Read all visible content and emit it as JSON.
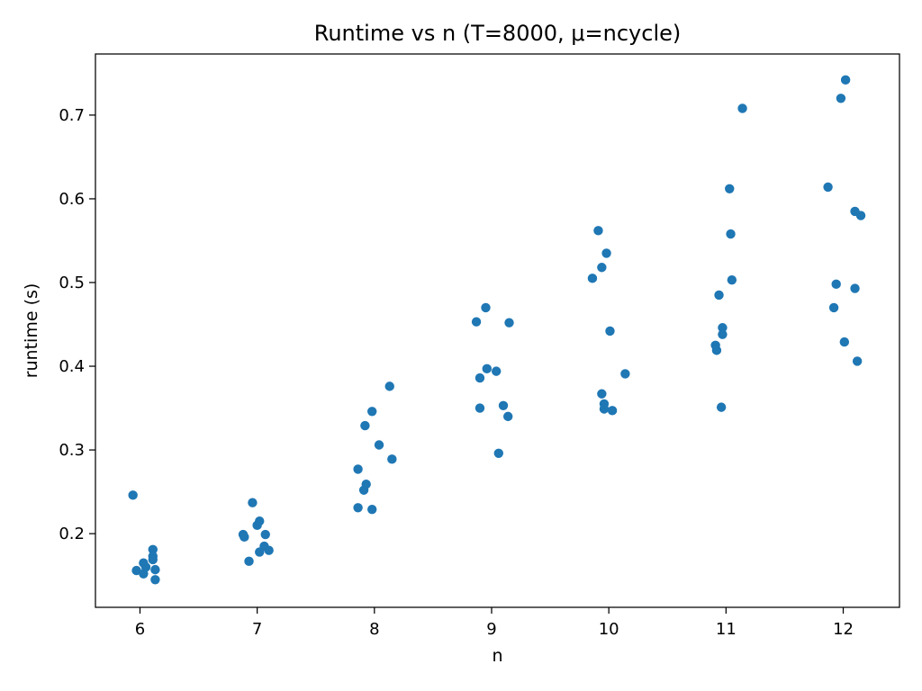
{
  "chart_data": {
    "type": "scatter",
    "title": "Runtime vs n (T=8000, μ=ncycle)",
    "xlabel": "n",
    "ylabel": "runtime (s)",
    "xlim": [
      5.62,
      12.48
    ],
    "ylim": [
      0.112,
      0.773
    ],
    "xticks": [
      6,
      7,
      8,
      9,
      10,
      11,
      12
    ],
    "xtick_labels": [
      "6",
      "7",
      "8",
      "9",
      "10",
      "11",
      "12"
    ],
    "yticks": [
      0.2,
      0.3,
      0.4,
      0.5,
      0.6,
      0.7
    ],
    "ytick_labels": [
      "0.2",
      "0.3",
      "0.4",
      "0.5",
      "0.6",
      "0.7"
    ],
    "grid": false,
    "color": "#1f77b4",
    "points": [
      {
        "x": 5.94,
        "y": 0.246
      },
      {
        "x": 5.97,
        "y": 0.156
      },
      {
        "x": 6.03,
        "y": 0.165
      },
      {
        "x": 6.03,
        "y": 0.152
      },
      {
        "x": 6.05,
        "y": 0.16
      },
      {
        "x": 6.11,
        "y": 0.181
      },
      {
        "x": 6.11,
        "y": 0.173
      },
      {
        "x": 6.11,
        "y": 0.169
      },
      {
        "x": 6.13,
        "y": 0.157
      },
      {
        "x": 6.13,
        "y": 0.145
      },
      {
        "x": 6.88,
        "y": 0.199
      },
      {
        "x": 6.89,
        "y": 0.196
      },
      {
        "x": 6.93,
        "y": 0.167
      },
      {
        "x": 6.96,
        "y": 0.237
      },
      {
        "x": 7.0,
        "y": 0.21
      },
      {
        "x": 7.02,
        "y": 0.215
      },
      {
        "x": 7.02,
        "y": 0.178
      },
      {
        "x": 7.06,
        "y": 0.185
      },
      {
        "x": 7.07,
        "y": 0.199
      },
      {
        "x": 7.1,
        "y": 0.18
      },
      {
        "x": 7.86,
        "y": 0.277
      },
      {
        "x": 7.86,
        "y": 0.231
      },
      {
        "x": 7.91,
        "y": 0.252
      },
      {
        "x": 7.92,
        "y": 0.329
      },
      {
        "x": 7.93,
        "y": 0.259
      },
      {
        "x": 7.98,
        "y": 0.346
      },
      {
        "x": 7.98,
        "y": 0.229
      },
      {
        "x": 8.04,
        "y": 0.306
      },
      {
        "x": 8.13,
        "y": 0.376
      },
      {
        "x": 8.15,
        "y": 0.289
      },
      {
        "x": 8.87,
        "y": 0.453
      },
      {
        "x": 8.9,
        "y": 0.386
      },
      {
        "x": 8.9,
        "y": 0.35
      },
      {
        "x": 8.95,
        "y": 0.47
      },
      {
        "x": 8.96,
        "y": 0.397
      },
      {
        "x": 9.04,
        "y": 0.394
      },
      {
        "x": 9.06,
        "y": 0.296
      },
      {
        "x": 9.1,
        "y": 0.353
      },
      {
        "x": 9.14,
        "y": 0.34
      },
      {
        "x": 9.15,
        "y": 0.452
      },
      {
        "x": 9.86,
        "y": 0.505
      },
      {
        "x": 9.91,
        "y": 0.562
      },
      {
        "x": 9.94,
        "y": 0.518
      },
      {
        "x": 9.94,
        "y": 0.367
      },
      {
        "x": 9.96,
        "y": 0.355
      },
      {
        "x": 9.96,
        "y": 0.349
      },
      {
        "x": 9.98,
        "y": 0.535
      },
      {
        "x": 10.01,
        "y": 0.442
      },
      {
        "x": 10.03,
        "y": 0.347
      },
      {
        "x": 10.14,
        "y": 0.391
      },
      {
        "x": 10.91,
        "y": 0.425
      },
      {
        "x": 10.92,
        "y": 0.419
      },
      {
        "x": 10.94,
        "y": 0.485
      },
      {
        "x": 10.96,
        "y": 0.351
      },
      {
        "x": 10.97,
        "y": 0.446
      },
      {
        "x": 10.97,
        "y": 0.438
      },
      {
        "x": 11.03,
        "y": 0.612
      },
      {
        "x": 11.04,
        "y": 0.558
      },
      {
        "x": 11.05,
        "y": 0.503
      },
      {
        "x": 11.14,
        "y": 0.708
      },
      {
        "x": 11.87,
        "y": 0.614
      },
      {
        "x": 11.92,
        "y": 0.47
      },
      {
        "x": 11.94,
        "y": 0.498
      },
      {
        "x": 11.98,
        "y": 0.72
      },
      {
        "x": 12.01,
        "y": 0.429
      },
      {
        "x": 12.02,
        "y": 0.742
      },
      {
        "x": 12.1,
        "y": 0.585
      },
      {
        "x": 12.1,
        "y": 0.493
      },
      {
        "x": 12.12,
        "y": 0.406
      },
      {
        "x": 12.15,
        "y": 0.58
      }
    ]
  }
}
